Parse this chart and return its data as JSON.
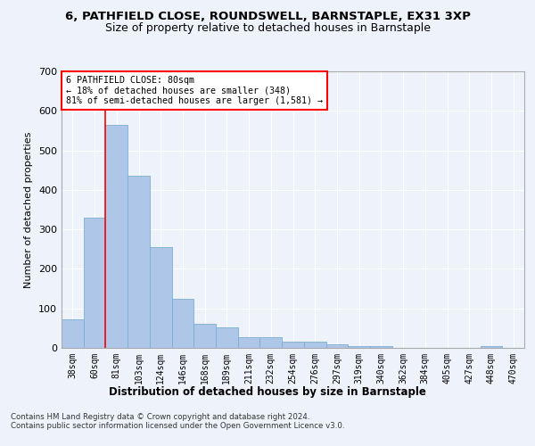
{
  "title1": "6, PATHFIELD CLOSE, ROUNDSWELL, BARNSTAPLE, EX31 3XP",
  "title2": "Size of property relative to detached houses in Barnstaple",
  "xlabel": "Distribution of detached houses by size in Barnstaple",
  "ylabel": "Number of detached properties",
  "categories": [
    "38sqm",
    "60sqm",
    "81sqm",
    "103sqm",
    "124sqm",
    "146sqm",
    "168sqm",
    "189sqm",
    "211sqm",
    "232sqm",
    "254sqm",
    "276sqm",
    "297sqm",
    "319sqm",
    "340sqm",
    "362sqm",
    "384sqm",
    "405sqm",
    "427sqm",
    "448sqm",
    "470sqm"
  ],
  "values": [
    72,
    330,
    565,
    435,
    255,
    125,
    62,
    52,
    28,
    28,
    15,
    15,
    10,
    5,
    4,
    1,
    0,
    0,
    0,
    4,
    0
  ],
  "bar_color": "#aec6e8",
  "bar_edge_color": "#7bafd4",
  "annotation_line1": "6 PATHFIELD CLOSE: 80sqm",
  "annotation_line2": "← 18% of detached houses are smaller (348)",
  "annotation_line3": "81% of semi-detached houses are larger (1,581) →",
  "vline_x": 1.5,
  "ylim": [
    0,
    700
  ],
  "yticks": [
    0,
    100,
    200,
    300,
    400,
    500,
    600,
    700
  ],
  "background_color": "#eef2fb",
  "grid_color": "#ffffff",
  "footnote": "Contains HM Land Registry data © Crown copyright and database right 2024.\nContains public sector information licensed under the Open Government Licence v3.0."
}
